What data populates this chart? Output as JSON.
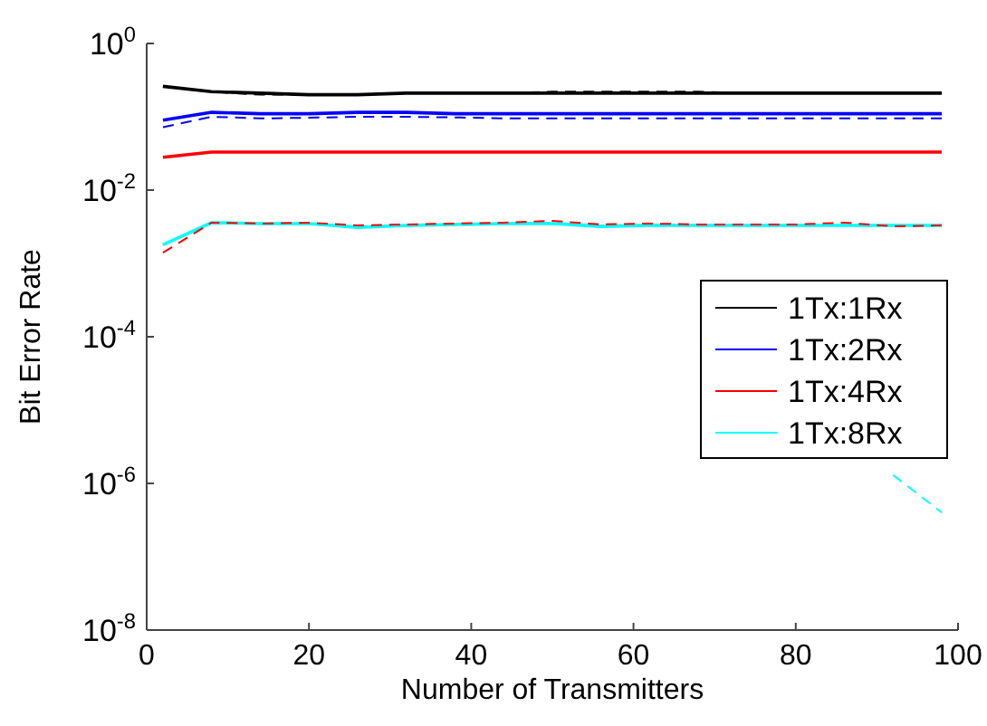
{
  "chart_data": {
    "type": "line",
    "xlabel": "Number of Transmitters",
    "ylabel": "Bit Error Rate",
    "x": [
      2,
      8,
      14,
      20,
      26,
      32,
      38,
      44,
      50,
      56,
      62,
      68,
      74,
      80,
      86,
      92,
      98
    ],
    "xlim": [
      0,
      100
    ],
    "xticks": [
      0,
      20,
      40,
      60,
      80,
      100
    ],
    "ylim": [
      1e-08,
      1
    ],
    "yticks": [
      {
        "value": 1e-08,
        "label": "10$^{-8}$"
      },
      {
        "value": 1e-06,
        "label": "10$^{-6}$"
      },
      {
        "value": 0.0001,
        "label": "10$^{-4}$"
      },
      {
        "value": 0.01,
        "label": "10$^{-2}$"
      },
      {
        "value": 1,
        "label": "10$^{0}$"
      }
    ],
    "log": "y",
    "grid": false,
    "legend": "right",
    "marker": "none",
    "series": [
      {
        "name": "1Tx:1Rx",
        "color": "#000000",
        "line_style": "solid",
        "values": [
          0.26,
          0.22,
          0.21,
          0.2,
          0.2,
          0.21,
          0.21,
          0.21,
          0.21,
          0.21,
          0.21,
          0.21,
          0.21,
          0.21,
          0.21,
          0.21,
          0.21
        ]
      },
      {
        "name": "1Tx:2Rx",
        "color": "#0000ff",
        "line_style": "solid",
        "values": [
          0.09,
          0.115,
          0.11,
          0.11,
          0.115,
          0.115,
          0.11,
          0.11,
          0.11,
          0.11,
          0.11,
          0.11,
          0.11,
          0.11,
          0.11,
          0.11,
          0.11
        ]
      },
      {
        "name": "1Tx:4Rx",
        "color": "#ff0000",
        "line_style": "solid",
        "values": [
          0.028,
          0.033,
          0.033,
          0.033,
          0.033,
          0.033,
          0.033,
          0.033,
          0.033,
          0.033,
          0.033,
          0.033,
          0.033,
          0.033,
          0.033,
          0.033,
          0.033
        ]
      },
      {
        "name": "1Tx:8Rx",
        "color": "#00ffff",
        "line_style": "solid",
        "values": [
          0.0018,
          0.0036,
          0.0035,
          0.0035,
          0.0031,
          0.0033,
          0.0034,
          0.0035,
          0.0035,
          0.0032,
          0.0033,
          0.0033,
          0.0033,
          0.0033,
          0.0033,
          0.0033,
          0.0033
        ]
      },
      {
        "color": "#000000",
        "line_style": "dashed",
        "values": [
          0.26,
          0.22,
          0.2,
          0.2,
          0.2,
          0.21,
          0.21,
          0.21,
          0.22,
          0.22,
          0.22,
          0.22,
          0.21,
          0.21,
          0.21,
          0.21,
          0.21
        ]
      },
      {
        "color": "#0000ff",
        "line_style": "dashed",
        "values": [
          0.072,
          0.1,
          0.095,
          0.097,
          0.1,
          0.1,
          0.098,
          0.095,
          0.095,
          0.095,
          0.095,
          0.095,
          0.095,
          0.095,
          0.095,
          0.095,
          0.095
        ]
      },
      {
        "color": "#00ffff",
        "line_style": "dashed",
        "values": [
          0.0018,
          0.0036,
          0.0035,
          0.0035,
          0.0032,
          0.0033,
          0.0034,
          0.0035,
          0.0036,
          0.0033,
          0.0034,
          0.0033,
          0.0033,
          0.0033,
          null,
          1.3e-06,
          4e-07
        ]
      },
      {
        "color": "#ff0000",
        "line_style": "dashed",
        "values": [
          0.0014,
          0.0036,
          0.0035,
          0.0036,
          0.0033,
          0.0034,
          0.0035,
          0.0036,
          0.0038,
          0.0034,
          0.0035,
          0.0034,
          0.0034,
          0.0034,
          0.0036,
          0.0032,
          0.0033
        ]
      }
    ]
  }
}
